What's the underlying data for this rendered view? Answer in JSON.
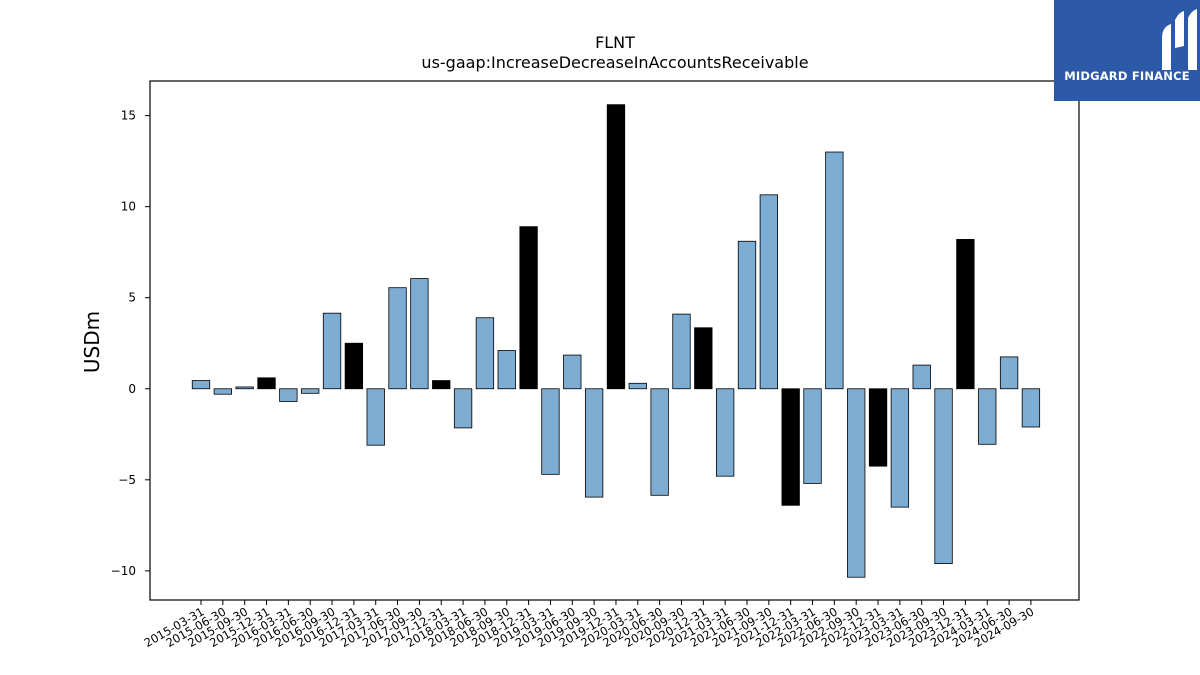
{
  "brand": {
    "name": "MIDGARD FINANCE",
    "color": "#2d5aa8"
  },
  "chart_data": {
    "type": "bar",
    "title": "FLNT",
    "subtitle": "us-gaap:IncreaseDecreaseInAccountsReceivable",
    "xlabel": "",
    "ylabel": "USDm",
    "ylim": [
      -11.6,
      16.9
    ],
    "yticks": [
      -10,
      -5,
      0,
      5,
      10,
      15
    ],
    "grid": false,
    "colors": {
      "quarterly": "#7eadd3",
      "q4": "#000000",
      "edge": "#000000"
    },
    "categories": [
      "2015-03-31",
      "2015-06-30",
      "2015-09-30",
      "2015-12-31",
      "2016-03-31",
      "2016-06-30",
      "2016-09-30",
      "2016-12-31",
      "2017-03-31",
      "2017-06-30",
      "2017-09-30",
      "2017-12-31",
      "2018-03-31",
      "2018-06-30",
      "2018-09-30",
      "2018-12-31",
      "2019-03-31",
      "2019-06-30",
      "2019-09-30",
      "2019-12-31",
      "2020-03-31",
      "2020-06-30",
      "2020-09-30",
      "2020-12-31",
      "2021-03-31",
      "2021-06-30",
      "2021-09-30",
      "2021-12-31",
      "2022-03-31",
      "2022-06-30",
      "2022-09-30",
      "2022-12-31",
      "2023-03-31",
      "2023-06-30",
      "2023-09-30",
      "2023-12-31",
      "2024-03-31",
      "2024-06-30",
      "2024-09-30"
    ],
    "values": [
      0.45,
      -0.3,
      0.1,
      0.6,
      -0.7,
      -0.25,
      4.15,
      2.5,
      -3.1,
      5.55,
      6.05,
      0.45,
      -2.15,
      3.9,
      2.1,
      8.9,
      -4.7,
      1.85,
      -5.95,
      15.6,
      0.3,
      -5.85,
      4.1,
      3.35,
      -4.8,
      8.1,
      10.65,
      -6.4,
      -5.2,
      13.0,
      -10.35,
      -4.25,
      -6.5,
      1.3,
      -9.6,
      8.2,
      -3.05,
      1.75,
      -2.1
    ]
  }
}
